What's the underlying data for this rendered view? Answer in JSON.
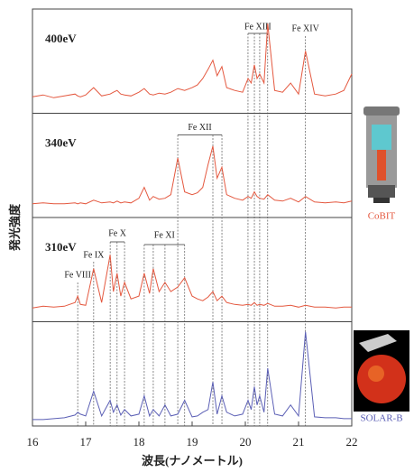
{
  "chart_data": {
    "type": "line",
    "xlabel": "波長(ナノメートル)",
    "ylabel": "発光強度",
    "instrument_label": "CoBIT",
    "xlim": [
      16,
      22
    ],
    "xticks": [
      16,
      17,
      18,
      19,
      20,
      21,
      22
    ],
    "ylim": [
      0,
      100
    ],
    "x": [
      16.0,
      16.2,
      16.4,
      16.6,
      16.8,
      16.85,
      16.9,
      17.0,
      17.15,
      17.3,
      17.46,
      17.52,
      17.59,
      17.66,
      17.73,
      17.85,
      18.0,
      18.1,
      18.2,
      18.27,
      18.38,
      18.49,
      18.6,
      18.73,
      18.86,
      19.0,
      19.1,
      19.2,
      19.3,
      19.39,
      19.47,
      19.56,
      19.65,
      19.8,
      19.95,
      20.05,
      20.11,
      20.17,
      20.22,
      20.27,
      20.35,
      20.42,
      20.55,
      20.7,
      20.85,
      21.0,
      21.13,
      21.3,
      21.5,
      21.7,
      21.85,
      22.0
    ],
    "series": [
      {
        "name": "400eV",
        "color": "#e4583f",
        "values": [
          15,
          17,
          14,
          16,
          18,
          16,
          15,
          17,
          25,
          16,
          18,
          20,
          22,
          18,
          17,
          16,
          20,
          24,
          18,
          17,
          19,
          18,
          20,
          24,
          22,
          25,
          28,
          35,
          45,
          55,
          38,
          48,
          25,
          22,
          20,
          35,
          30,
          50,
          35,
          40,
          30,
          95,
          22,
          20,
          30,
          18,
          65,
          18,
          16,
          18,
          22,
          40
        ]
      },
      {
        "name": "340eV",
        "color": "#e4583f",
        "values": [
          12,
          13,
          12,
          12,
          13,
          12,
          13,
          12,
          16,
          13,
          14,
          13,
          15,
          13,
          14,
          13,
          18,
          30,
          16,
          20,
          17,
          18,
          22,
          62,
          25,
          22,
          24,
          30,
          55,
          75,
          40,
          52,
          22,
          18,
          16,
          20,
          18,
          25,
          20,
          18,
          17,
          22,
          16,
          15,
          18,
          14,
          20,
          14,
          13,
          14,
          13,
          15
        ]
      },
      {
        "name": "310eV",
        "color": "#e4583f",
        "values": [
          12,
          14,
          13,
          14,
          18,
          25,
          16,
          15,
          55,
          18,
          70,
          30,
          50,
          25,
          40,
          22,
          25,
          50,
          28,
          55,
          30,
          40,
          30,
          35,
          45,
          25,
          22,
          20,
          24,
          30,
          20,
          25,
          18,
          16,
          15,
          16,
          15,
          18,
          15,
          16,
          15,
          17,
          14,
          14,
          15,
          13,
          15,
          13,
          13,
          12,
          13,
          13
        ]
      },
      {
        "name": "SOLAR-B",
        "color": "#5b5fb5",
        "values": [
          4,
          4,
          5,
          6,
          9,
          12,
          10,
          8,
          35,
          8,
          25,
          12,
          20,
          9,
          15,
          8,
          10,
          30,
          8,
          15,
          8,
          20,
          8,
          10,
          25,
          7,
          8,
          12,
          15,
          45,
          10,
          30,
          12,
          8,
          10,
          25,
          15,
          40,
          20,
          30,
          12,
          60,
          10,
          8,
          20,
          8,
          100,
          7,
          6,
          6,
          5,
          5
        ]
      }
    ],
    "annotations": [
      {
        "label": "Fe VIII",
        "x": [
          16.85
        ],
        "panel": 2
      },
      {
        "label": "Fe IX",
        "x": [
          17.15
        ],
        "panel": 2
      },
      {
        "label": "Fe X",
        "x": [
          17.46,
          17.59,
          17.73
        ],
        "panel": 2
      },
      {
        "label": "Fe XI",
        "x": [
          18.1,
          18.27,
          18.49,
          18.86
        ],
        "panel": 2
      },
      {
        "label": "Fe XII",
        "x": [
          18.73,
          19.39,
          19.56
        ],
        "panel": 1
      },
      {
        "label": "Fe XIII",
        "x": [
          20.05,
          20.17,
          20.27,
          20.42
        ],
        "panel": 0
      },
      {
        "label": "Fe XIV",
        "x": [
          21.13
        ],
        "panel": 0
      }
    ]
  }
}
